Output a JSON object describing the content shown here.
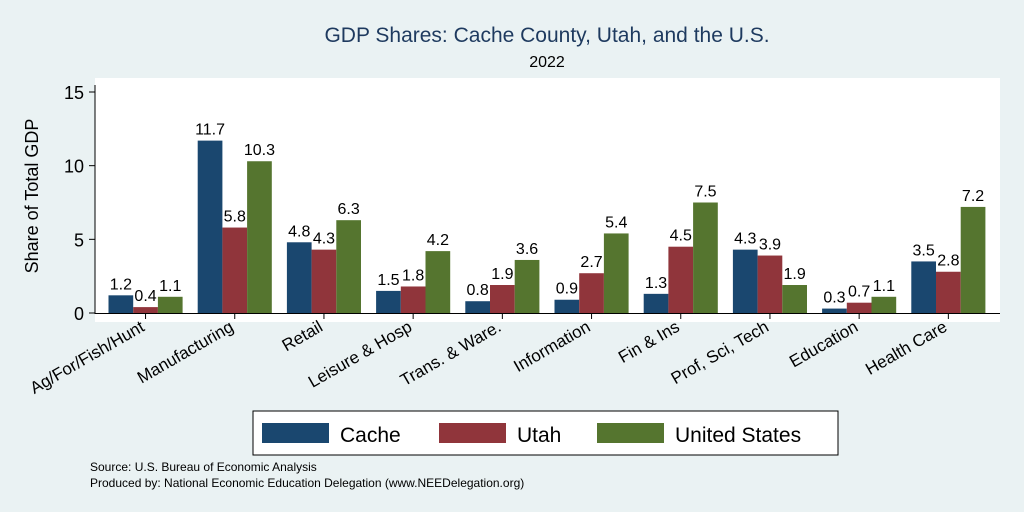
{
  "chart_data": {
    "type": "bar",
    "title": "GDP Shares: Cache County, Utah, and the U.S.",
    "subtitle": "2022",
    "xlabel": "",
    "ylabel": "Share of Total GDP",
    "ylim": [
      0,
      15
    ],
    "yticks": [
      0,
      5,
      10,
      15
    ],
    "categories": [
      "Ag/For/Fish/Hunt",
      "Manufacturing",
      "Retail",
      "Leisure & Hosp",
      "Trans. & Ware.",
      "Information",
      "Fin & Ins",
      "Prof, Sci, Tech",
      "Education",
      "Health Care"
    ],
    "series": [
      {
        "name": "Cache",
        "color": "#1a476f",
        "values": [
          1.2,
          11.7,
          4.8,
          1.5,
          0.8,
          0.9,
          1.3,
          4.3,
          0.3,
          3.5
        ]
      },
      {
        "name": "Utah",
        "color": "#90353b",
        "values": [
          0.4,
          5.8,
          4.3,
          1.8,
          1.9,
          2.7,
          4.5,
          3.9,
          0.7,
          2.8
        ]
      },
      {
        "name": "United States",
        "color": "#55752f",
        "values": [
          1.1,
          10.3,
          6.3,
          4.2,
          3.6,
          5.4,
          7.5,
          1.9,
          1.1,
          7.2
        ]
      }
    ],
    "legend": "bottom",
    "grid": false
  },
  "notes": {
    "source": "Source: U.S. Bureau of Economic Analysis",
    "produced": "Produced by: National Economic Education Delegation (www.NEEDelegation.org)"
  }
}
